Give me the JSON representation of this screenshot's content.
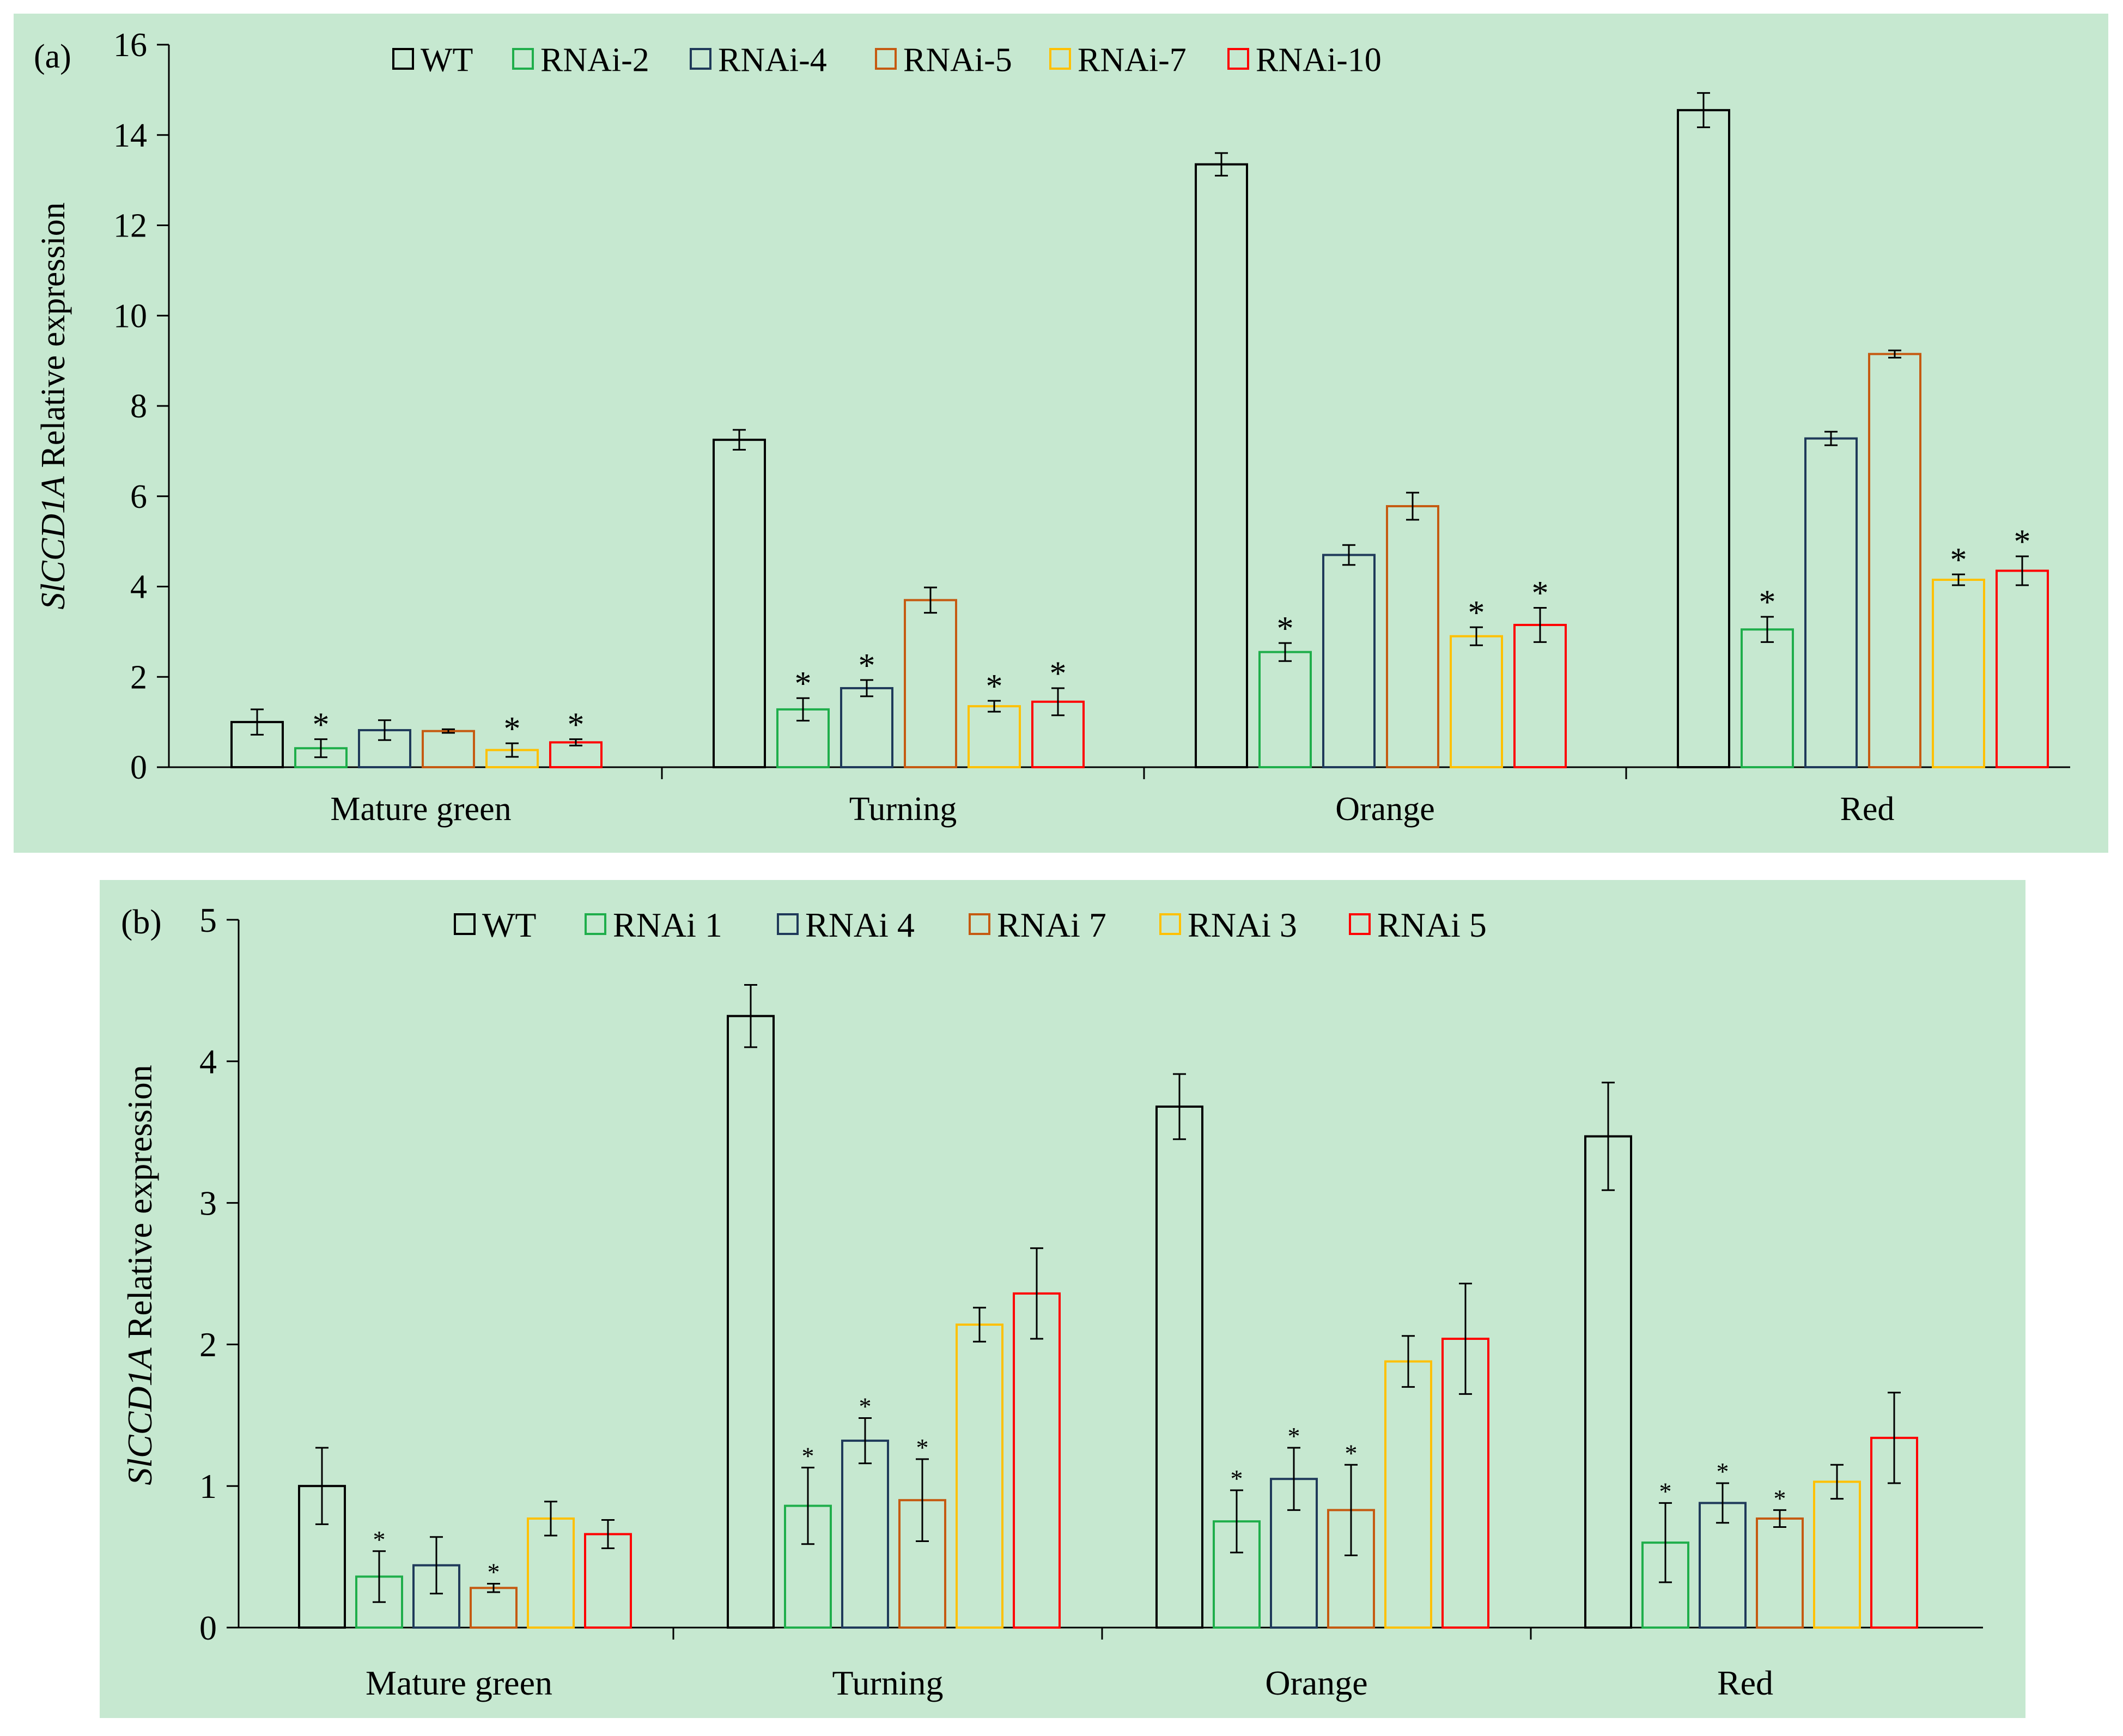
{
  "chart_data": [
    {
      "type": "bar",
      "panel_label": "(a)",
      "ylabel_gene": "SlCCD1A",
      "ylabel_rest": " Relative expression",
      "xlabel": "",
      "ylim": [
        0,
        16
      ],
      "yticks": [
        0,
        2,
        4,
        6,
        8,
        10,
        12,
        14,
        16
      ],
      "categories": [
        "Mature green",
        "Turning",
        "Orange",
        "Red"
      ],
      "legend_position": "top",
      "significance_marker": "*",
      "series": [
        {
          "name": "WT",
          "color": "#000000",
          "values": [
            1.0,
            7.25,
            13.35,
            14.55
          ],
          "errors": [
            0.28,
            0.22,
            0.25,
            0.38
          ],
          "significant": [
            false,
            false,
            false,
            false
          ]
        },
        {
          "name": "RNAi-2",
          "color": "#1fae4b",
          "values": [
            0.42,
            1.28,
            2.55,
            3.05
          ],
          "errors": [
            0.2,
            0.25,
            0.2,
            0.28
          ],
          "significant": [
            true,
            true,
            true,
            true
          ]
        },
        {
          "name": "RNAi-4",
          "color": "#1f3a5a",
          "values": [
            0.82,
            1.75,
            4.7,
            7.28
          ],
          "errors": [
            0.22,
            0.18,
            0.22,
            0.15
          ],
          "significant": [
            false,
            true,
            false,
            false
          ]
        },
        {
          "name": "RNAi-5",
          "color": "#c55a11",
          "values": [
            0.8,
            3.7,
            5.78,
            9.15
          ],
          "errors": [
            0.04,
            0.28,
            0.3,
            0.08
          ],
          "significant": [
            false,
            false,
            false,
            false
          ]
        },
        {
          "name": "RNAi-7",
          "color": "#ffc000",
          "values": [
            0.38,
            1.35,
            2.9,
            4.15
          ],
          "errors": [
            0.15,
            0.12,
            0.2,
            0.12
          ],
          "significant": [
            true,
            true,
            true,
            true
          ]
        },
        {
          "name": "RNAi-10",
          "color": "#ff0000",
          "values": [
            0.55,
            1.45,
            3.15,
            4.35
          ],
          "errors": [
            0.07,
            0.3,
            0.38,
            0.32
          ],
          "significant": [
            true,
            true,
            true,
            true
          ]
        }
      ]
    },
    {
      "type": "bar",
      "panel_label": "(b)",
      "ylabel_gene": "SlCCD1A",
      "ylabel_rest": " Relative expression",
      "xlabel": "",
      "ylim": [
        0,
        5
      ],
      "yticks": [
        0,
        1,
        2,
        3,
        4,
        5
      ],
      "categories": [
        "Mature green",
        "Turning",
        "Orange",
        "Red"
      ],
      "legend_position": "top",
      "significance_marker": "*",
      "series": [
        {
          "name": "WT",
          "color": "#000000",
          "values": [
            1.0,
            4.32,
            3.68,
            3.47
          ],
          "errors": [
            0.27,
            0.22,
            0.23,
            0.38
          ],
          "significant": [
            false,
            false,
            false,
            false
          ]
        },
        {
          "name": "RNAi 1",
          "color": "#1fae4b",
          "values": [
            0.36,
            0.86,
            0.75,
            0.6
          ],
          "errors": [
            0.18,
            0.27,
            0.22,
            0.28
          ],
          "significant": [
            true,
            true,
            true,
            true
          ]
        },
        {
          "name": "RNAi 4",
          "color": "#1f3a5a",
          "values": [
            0.44,
            1.32,
            1.05,
            0.88
          ],
          "errors": [
            0.2,
            0.16,
            0.22,
            0.14
          ],
          "significant": [
            false,
            true,
            true,
            true
          ]
        },
        {
          "name": "RNAi 7",
          "color": "#c55a11",
          "values": [
            0.28,
            0.9,
            0.83,
            0.77
          ],
          "errors": [
            0.03,
            0.29,
            0.32,
            0.06
          ],
          "significant": [
            true,
            true,
            true,
            true
          ]
        },
        {
          "name": "RNAi 3",
          "color": "#ffc000",
          "values": [
            0.77,
            2.14,
            1.88,
            1.03
          ],
          "errors": [
            0.12,
            0.12,
            0.18,
            0.12
          ],
          "significant": [
            false,
            false,
            false,
            false
          ]
        },
        {
          "name": "RNAi 5",
          "color": "#ff0000",
          "values": [
            0.66,
            2.36,
            2.04,
            1.34
          ],
          "errors": [
            0.1,
            0.32,
            0.39,
            0.32
          ],
          "significant": [
            false,
            false,
            false,
            false
          ]
        }
      ]
    }
  ]
}
